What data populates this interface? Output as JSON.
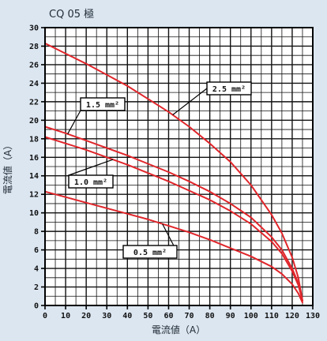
{
  "chart_data": {
    "type": "line",
    "title": "CQ 05 極",
    "xlabel": "電流値（A）",
    "ylabel": "電流値（A）",
    "xlim": [
      0,
      130
    ],
    "ylim": [
      0,
      30
    ],
    "xticks": [
      0,
      10,
      20,
      30,
      40,
      50,
      60,
      70,
      80,
      90,
      100,
      110,
      120,
      130
    ],
    "yticks": [
      0,
      2,
      4,
      6,
      8,
      10,
      12,
      14,
      16,
      18,
      20,
      22,
      24,
      26,
      28,
      30
    ],
    "grid": true,
    "line_color": "#e0262b",
    "series": [
      {
        "name": "2.5 mm²",
        "x": [
          0,
          10,
          20,
          30,
          40,
          50,
          60,
          70,
          80,
          90,
          100,
          110,
          115,
          120,
          123,
          125
        ],
        "y": [
          28.3,
          27.2,
          26.1,
          24.9,
          23.7,
          22.3,
          20.9,
          19.3,
          17.5,
          15.5,
          13.0,
          9.8,
          7.8,
          5.2,
          3.0,
          0.5
        ]
      },
      {
        "name": "1.5 mm²",
        "x": [
          0,
          10,
          20,
          30,
          40,
          50,
          60,
          70,
          80,
          90,
          100,
          110,
          115,
          120,
          123,
          125
        ],
        "y": [
          19.3,
          18.6,
          17.8,
          17.0,
          16.2,
          15.3,
          14.4,
          13.4,
          12.3,
          11.0,
          9.5,
          7.4,
          6.0,
          4.0,
          2.4,
          0.5
        ]
      },
      {
        "name": "1.0 mm²",
        "x": [
          0,
          10,
          20,
          30,
          40,
          50,
          60,
          70,
          80,
          90,
          100,
          110,
          115,
          120,
          123,
          125
        ],
        "y": [
          18.2,
          17.5,
          16.8,
          16.0,
          15.2,
          14.3,
          13.4,
          12.4,
          11.4,
          10.2,
          8.8,
          6.9,
          5.6,
          3.7,
          2.2,
          0.5
        ]
      },
      {
        "name": "0.5 mm²",
        "x": [
          0,
          10,
          20,
          30,
          40,
          50,
          60,
          70,
          80,
          90,
          100,
          110,
          115,
          120,
          123,
          125
        ],
        "y": [
          12.3,
          11.7,
          11.1,
          10.5,
          9.9,
          9.3,
          8.6,
          7.9,
          7.1,
          6.2,
          5.3,
          4.2,
          3.4,
          2.3,
          1.3,
          0.3
        ]
      }
    ],
    "annotations": [
      {
        "text": "2.5 mm²",
        "series": "2.5 mm²"
      },
      {
        "text": "1.5 mm²",
        "series": "1.5 mm²"
      },
      {
        "text": "1.0 mm²",
        "series": "1.0 mm²"
      },
      {
        "text": "0.5 mm²",
        "series": "0.5 mm²"
      }
    ]
  }
}
